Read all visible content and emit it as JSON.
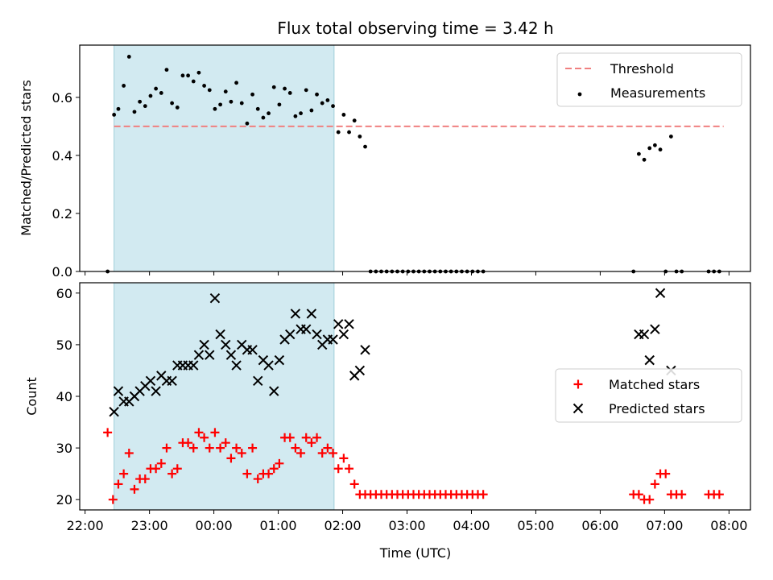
{
  "chart_data": [
    {
      "type": "scatter",
      "title": "Flux total observing time = 3.42 h",
      "ylabel": "Matched/Predicted stars",
      "ylim": [
        0,
        0.78
      ],
      "yticks": [
        "0.0",
        "0.2",
        "0.4",
        "0.6"
      ],
      "xlim": [
        "21:55",
        "08:20"
      ],
      "shaded_span": [
        "22:27",
        "01:52"
      ],
      "shaded_color": "#add8e6",
      "legend_position": "upper right",
      "legend": [
        "Threshold",
        "Measurements"
      ],
      "threshold": {
        "name": "Threshold",
        "value": 0.5,
        "x": [
          "22:27",
          "07:55"
        ],
        "color": "#f08080",
        "style": "dashed"
      },
      "series": [
        {
          "name": "Measurements",
          "color": "#000000",
          "marker": "dot",
          "points": [
            [
              "22:21",
              0.0
            ],
            [
              "22:27",
              0.54
            ],
            [
              "22:31",
              0.56
            ],
            [
              "22:36",
              0.64
            ],
            [
              "22:41",
              0.74
            ],
            [
              "22:46",
              0.55
            ],
            [
              "22:51",
              0.585
            ],
            [
              "22:56",
              0.57
            ],
            [
              "23:01",
              0.605
            ],
            [
              "23:06",
              0.63
            ],
            [
              "23:11",
              0.615
            ],
            [
              "23:16",
              0.695
            ],
            [
              "23:21",
              0.58
            ],
            [
              "23:26",
              0.565
            ],
            [
              "23:31",
              0.675
            ],
            [
              "23:36",
              0.675
            ],
            [
              "23:41",
              0.655
            ],
            [
              "23:46",
              0.685
            ],
            [
              "23:51",
              0.64
            ],
            [
              "23:56",
              0.625
            ],
            [
              "00:01",
              0.56
            ],
            [
              "00:06",
              0.575
            ],
            [
              "00:11",
              0.62
            ],
            [
              "00:16",
              0.585
            ],
            [
              "00:21",
              0.65
            ],
            [
              "00:26",
              0.58
            ],
            [
              "00:31",
              0.51
            ],
            [
              "00:36",
              0.61
            ],
            [
              "00:41",
              0.56
            ],
            [
              "00:46",
              0.53
            ],
            [
              "00:51",
              0.545
            ],
            [
              "00:56",
              0.635
            ],
            [
              "01:01",
              0.575
            ],
            [
              "01:06",
              0.63
            ],
            [
              "01:11",
              0.615
            ],
            [
              "01:16",
              0.535
            ],
            [
              "01:21",
              0.545
            ],
            [
              "01:26",
              0.625
            ],
            [
              "01:31",
              0.555
            ],
            [
              "01:36",
              0.61
            ],
            [
              "01:41",
              0.58
            ],
            [
              "01:46",
              0.59
            ],
            [
              "01:51",
              0.57
            ],
            [
              "01:56",
              0.48
            ],
            [
              "02:01",
              0.54
            ],
            [
              "02:06",
              0.48
            ],
            [
              "02:11",
              0.52
            ],
            [
              "02:16",
              0.465
            ],
            [
              "02:21",
              0.43
            ],
            [
              "02:26",
              0.0
            ],
            [
              "02:31",
              0.0
            ],
            [
              "02:36",
              0.0
            ],
            [
              "02:41",
              0.0
            ],
            [
              "02:46",
              0.0
            ],
            [
              "02:51",
              0.0
            ],
            [
              "02:56",
              0.0
            ],
            [
              "03:01",
              0.0
            ],
            [
              "03:06",
              0.0
            ],
            [
              "03:11",
              0.0
            ],
            [
              "03:16",
              0.0
            ],
            [
              "03:21",
              0.0
            ],
            [
              "03:26",
              0.0
            ],
            [
              "03:31",
              0.0
            ],
            [
              "03:36",
              0.0
            ],
            [
              "03:41",
              0.0
            ],
            [
              "03:46",
              0.0
            ],
            [
              "03:51",
              0.0
            ],
            [
              "03:56",
              0.0
            ],
            [
              "04:01",
              0.0
            ],
            [
              "04:06",
              0.0
            ],
            [
              "04:11",
              0.0
            ],
            [
              "06:31",
              0.0
            ],
            [
              "06:36",
              0.405
            ],
            [
              "06:41",
              0.385
            ],
            [
              "06:46",
              0.425
            ],
            [
              "06:51",
              0.435
            ],
            [
              "06:56",
              0.42
            ],
            [
              "07:01",
              0.0
            ],
            [
              "07:06",
              0.465
            ],
            [
              "07:11",
              0.0
            ],
            [
              "07:16",
              0.0
            ],
            [
              "07:41",
              0.0
            ],
            [
              "07:46",
              0.0
            ],
            [
              "07:51",
              0.0
            ]
          ]
        }
      ]
    },
    {
      "type": "scatter",
      "xlabel": "Time (UTC)",
      "ylabel": "Count",
      "ylim": [
        18,
        62
      ],
      "yticks": [
        "20",
        "30",
        "40",
        "50",
        "60"
      ],
      "xticks": [
        "22:00",
        "23:00",
        "00:00",
        "01:00",
        "02:00",
        "03:00",
        "04:00",
        "05:00",
        "06:00",
        "07:00",
        "08:00"
      ],
      "xlim": [
        "21:55",
        "08:20"
      ],
      "shaded_span": [
        "22:27",
        "01:52"
      ],
      "legend_position": "center right",
      "legend": [
        "Matched stars",
        "Predicted stars"
      ],
      "series": [
        {
          "name": "Matched stars",
          "color": "#ff0000",
          "marker": "plus",
          "points": [
            [
              "22:21",
              33
            ],
            [
              "22:26",
              20
            ],
            [
              "22:31",
              23
            ],
            [
              "22:36",
              25
            ],
            [
              "22:41",
              29
            ],
            [
              "22:46",
              22
            ],
            [
              "22:51",
              24
            ],
            [
              "22:56",
              24
            ],
            [
              "23:01",
              26
            ],
            [
              "23:06",
              26
            ],
            [
              "23:11",
              27
            ],
            [
              "23:16",
              30
            ],
            [
              "23:21",
              25
            ],
            [
              "23:26",
              26
            ],
            [
              "23:31",
              31
            ],
            [
              "23:36",
              31
            ],
            [
              "23:41",
              30
            ],
            [
              "23:46",
              33
            ],
            [
              "23:51",
              32
            ],
            [
              "23:56",
              30
            ],
            [
              "00:01",
              33
            ],
            [
              "00:06",
              30
            ],
            [
              "00:11",
              31
            ],
            [
              "00:16",
              28
            ],
            [
              "00:21",
              30
            ],
            [
              "00:26",
              29
            ],
            [
              "00:31",
              25
            ],
            [
              "00:36",
              30
            ],
            [
              "00:41",
              24
            ],
            [
              "00:46",
              25
            ],
            [
              "00:51",
              25
            ],
            [
              "00:56",
              26
            ],
            [
              "01:01",
              27
            ],
            [
              "01:06",
              32
            ],
            [
              "01:11",
              32
            ],
            [
              "01:16",
              30
            ],
            [
              "01:21",
              29
            ],
            [
              "01:26",
              32
            ],
            [
              "01:31",
              31
            ],
            [
              "01:36",
              32
            ],
            [
              "01:41",
              29
            ],
            [
              "01:46",
              30
            ],
            [
              "01:51",
              29
            ],
            [
              "01:56",
              26
            ],
            [
              "02:01",
              28
            ],
            [
              "02:06",
              26
            ],
            [
              "02:11",
              23
            ],
            [
              "02:16",
              21
            ],
            [
              "02:21",
              21
            ],
            [
              "02:26",
              21
            ],
            [
              "02:31",
              21
            ],
            [
              "02:36",
              21
            ],
            [
              "02:41",
              21
            ],
            [
              "02:46",
              21
            ],
            [
              "02:51",
              21
            ],
            [
              "02:56",
              21
            ],
            [
              "03:01",
              21
            ],
            [
              "03:06",
              21
            ],
            [
              "03:11",
              21
            ],
            [
              "03:16",
              21
            ],
            [
              "03:21",
              21
            ],
            [
              "03:26",
              21
            ],
            [
              "03:31",
              21
            ],
            [
              "03:36",
              21
            ],
            [
              "03:41",
              21
            ],
            [
              "03:46",
              21
            ],
            [
              "03:51",
              21
            ],
            [
              "03:56",
              21
            ],
            [
              "04:01",
              21
            ],
            [
              "04:06",
              21
            ],
            [
              "04:11",
              21
            ],
            [
              "06:31",
              21
            ],
            [
              "06:36",
              21
            ],
            [
              "06:41",
              20
            ],
            [
              "06:46",
              20
            ],
            [
              "06:51",
              23
            ],
            [
              "06:56",
              25
            ],
            [
              "07:01",
              25
            ],
            [
              "07:06",
              21
            ],
            [
              "07:11",
              21
            ],
            [
              "07:16",
              21
            ],
            [
              "07:41",
              21
            ],
            [
              "07:46",
              21
            ],
            [
              "07:51",
              21
            ]
          ]
        },
        {
          "name": "Predicted stars",
          "color": "#000000",
          "marker": "x",
          "points": [
            [
              "22:27",
              37
            ],
            [
              "22:31",
              41
            ],
            [
              "22:36",
              39
            ],
            [
              "22:41",
              39
            ],
            [
              "22:46",
              40
            ],
            [
              "22:51",
              41
            ],
            [
              "22:56",
              42
            ],
            [
              "23:01",
              43
            ],
            [
              "23:06",
              41
            ],
            [
              "23:11",
              44
            ],
            [
              "23:16",
              43
            ],
            [
              "23:21",
              43
            ],
            [
              "23:26",
              46
            ],
            [
              "23:31",
              46
            ],
            [
              "23:36",
              46
            ],
            [
              "23:41",
              46
            ],
            [
              "23:46",
              48
            ],
            [
              "23:51",
              50
            ],
            [
              "23:56",
              48
            ],
            [
              "00:01",
              59
            ],
            [
              "00:06",
              52
            ],
            [
              "00:11",
              50
            ],
            [
              "00:16",
              48
            ],
            [
              "00:21",
              46
            ],
            [
              "00:26",
              50
            ],
            [
              "00:31",
              49
            ],
            [
              "00:36",
              49
            ],
            [
              "00:41",
              43
            ],
            [
              "00:46",
              47
            ],
            [
              "00:51",
              46
            ],
            [
              "00:56",
              41
            ],
            [
              "01:01",
              47
            ],
            [
              "01:06",
              51
            ],
            [
              "01:11",
              52
            ],
            [
              "01:16",
              56
            ],
            [
              "01:21",
              53
            ],
            [
              "01:26",
              53
            ],
            [
              "01:31",
              56
            ],
            [
              "01:36",
              52
            ],
            [
              "01:41",
              50
            ],
            [
              "01:46",
              51
            ],
            [
              "01:51",
              51
            ],
            [
              "01:56",
              54
            ],
            [
              "02:01",
              52
            ],
            [
              "02:06",
              54
            ],
            [
              "02:11",
              44
            ],
            [
              "02:16",
              45
            ],
            [
              "02:21",
              49
            ],
            [
              "06:36",
              52
            ],
            [
              "06:41",
              52
            ],
            [
              "06:46",
              47
            ],
            [
              "06:51",
              53
            ],
            [
              "06:56",
              60
            ],
            [
              "07:06",
              45
            ]
          ]
        }
      ]
    }
  ]
}
